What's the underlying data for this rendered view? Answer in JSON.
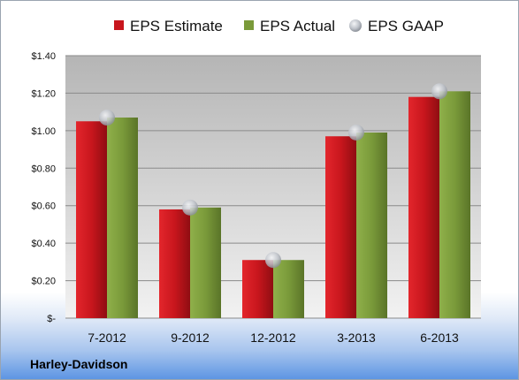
{
  "chart_data": {
    "type": "bar",
    "categories": [
      "7-2012",
      "9-2012",
      "12-2012",
      "3-2013",
      "6-2013"
    ],
    "series": [
      {
        "name": "EPS Estimate",
        "values": [
          1.05,
          0.58,
          0.31,
          0.97,
          1.18
        ],
        "color": "#c8161d",
        "kind": "bar"
      },
      {
        "name": "EPS Actual",
        "values": [
          1.07,
          0.59,
          0.31,
          0.99,
          1.21
        ],
        "color": "#7a9a3a",
        "kind": "bar"
      },
      {
        "name": "EPS GAAP",
        "values": [
          1.07,
          0.59,
          0.31,
          0.99,
          1.21
        ],
        "color": "#b8bcc4",
        "kind": "marker"
      }
    ],
    "ylim": [
      0,
      1.4
    ],
    "yticks": [
      {
        "value": 0,
        "label": "$-"
      },
      {
        "value": 0.2,
        "label": "$0.20"
      },
      {
        "value": 0.4,
        "label": "$0.40"
      },
      {
        "value": 0.6,
        "label": "$0.60"
      },
      {
        "value": 0.8,
        "label": "$0.80"
      },
      {
        "value": 1.0,
        "label": "$1.00"
      },
      {
        "value": 1.2,
        "label": "$1.20"
      },
      {
        "value": 1.4,
        "label": "$1.40"
      }
    ],
    "grid": true,
    "legend": "top"
  },
  "company": "Harley-Davidson"
}
